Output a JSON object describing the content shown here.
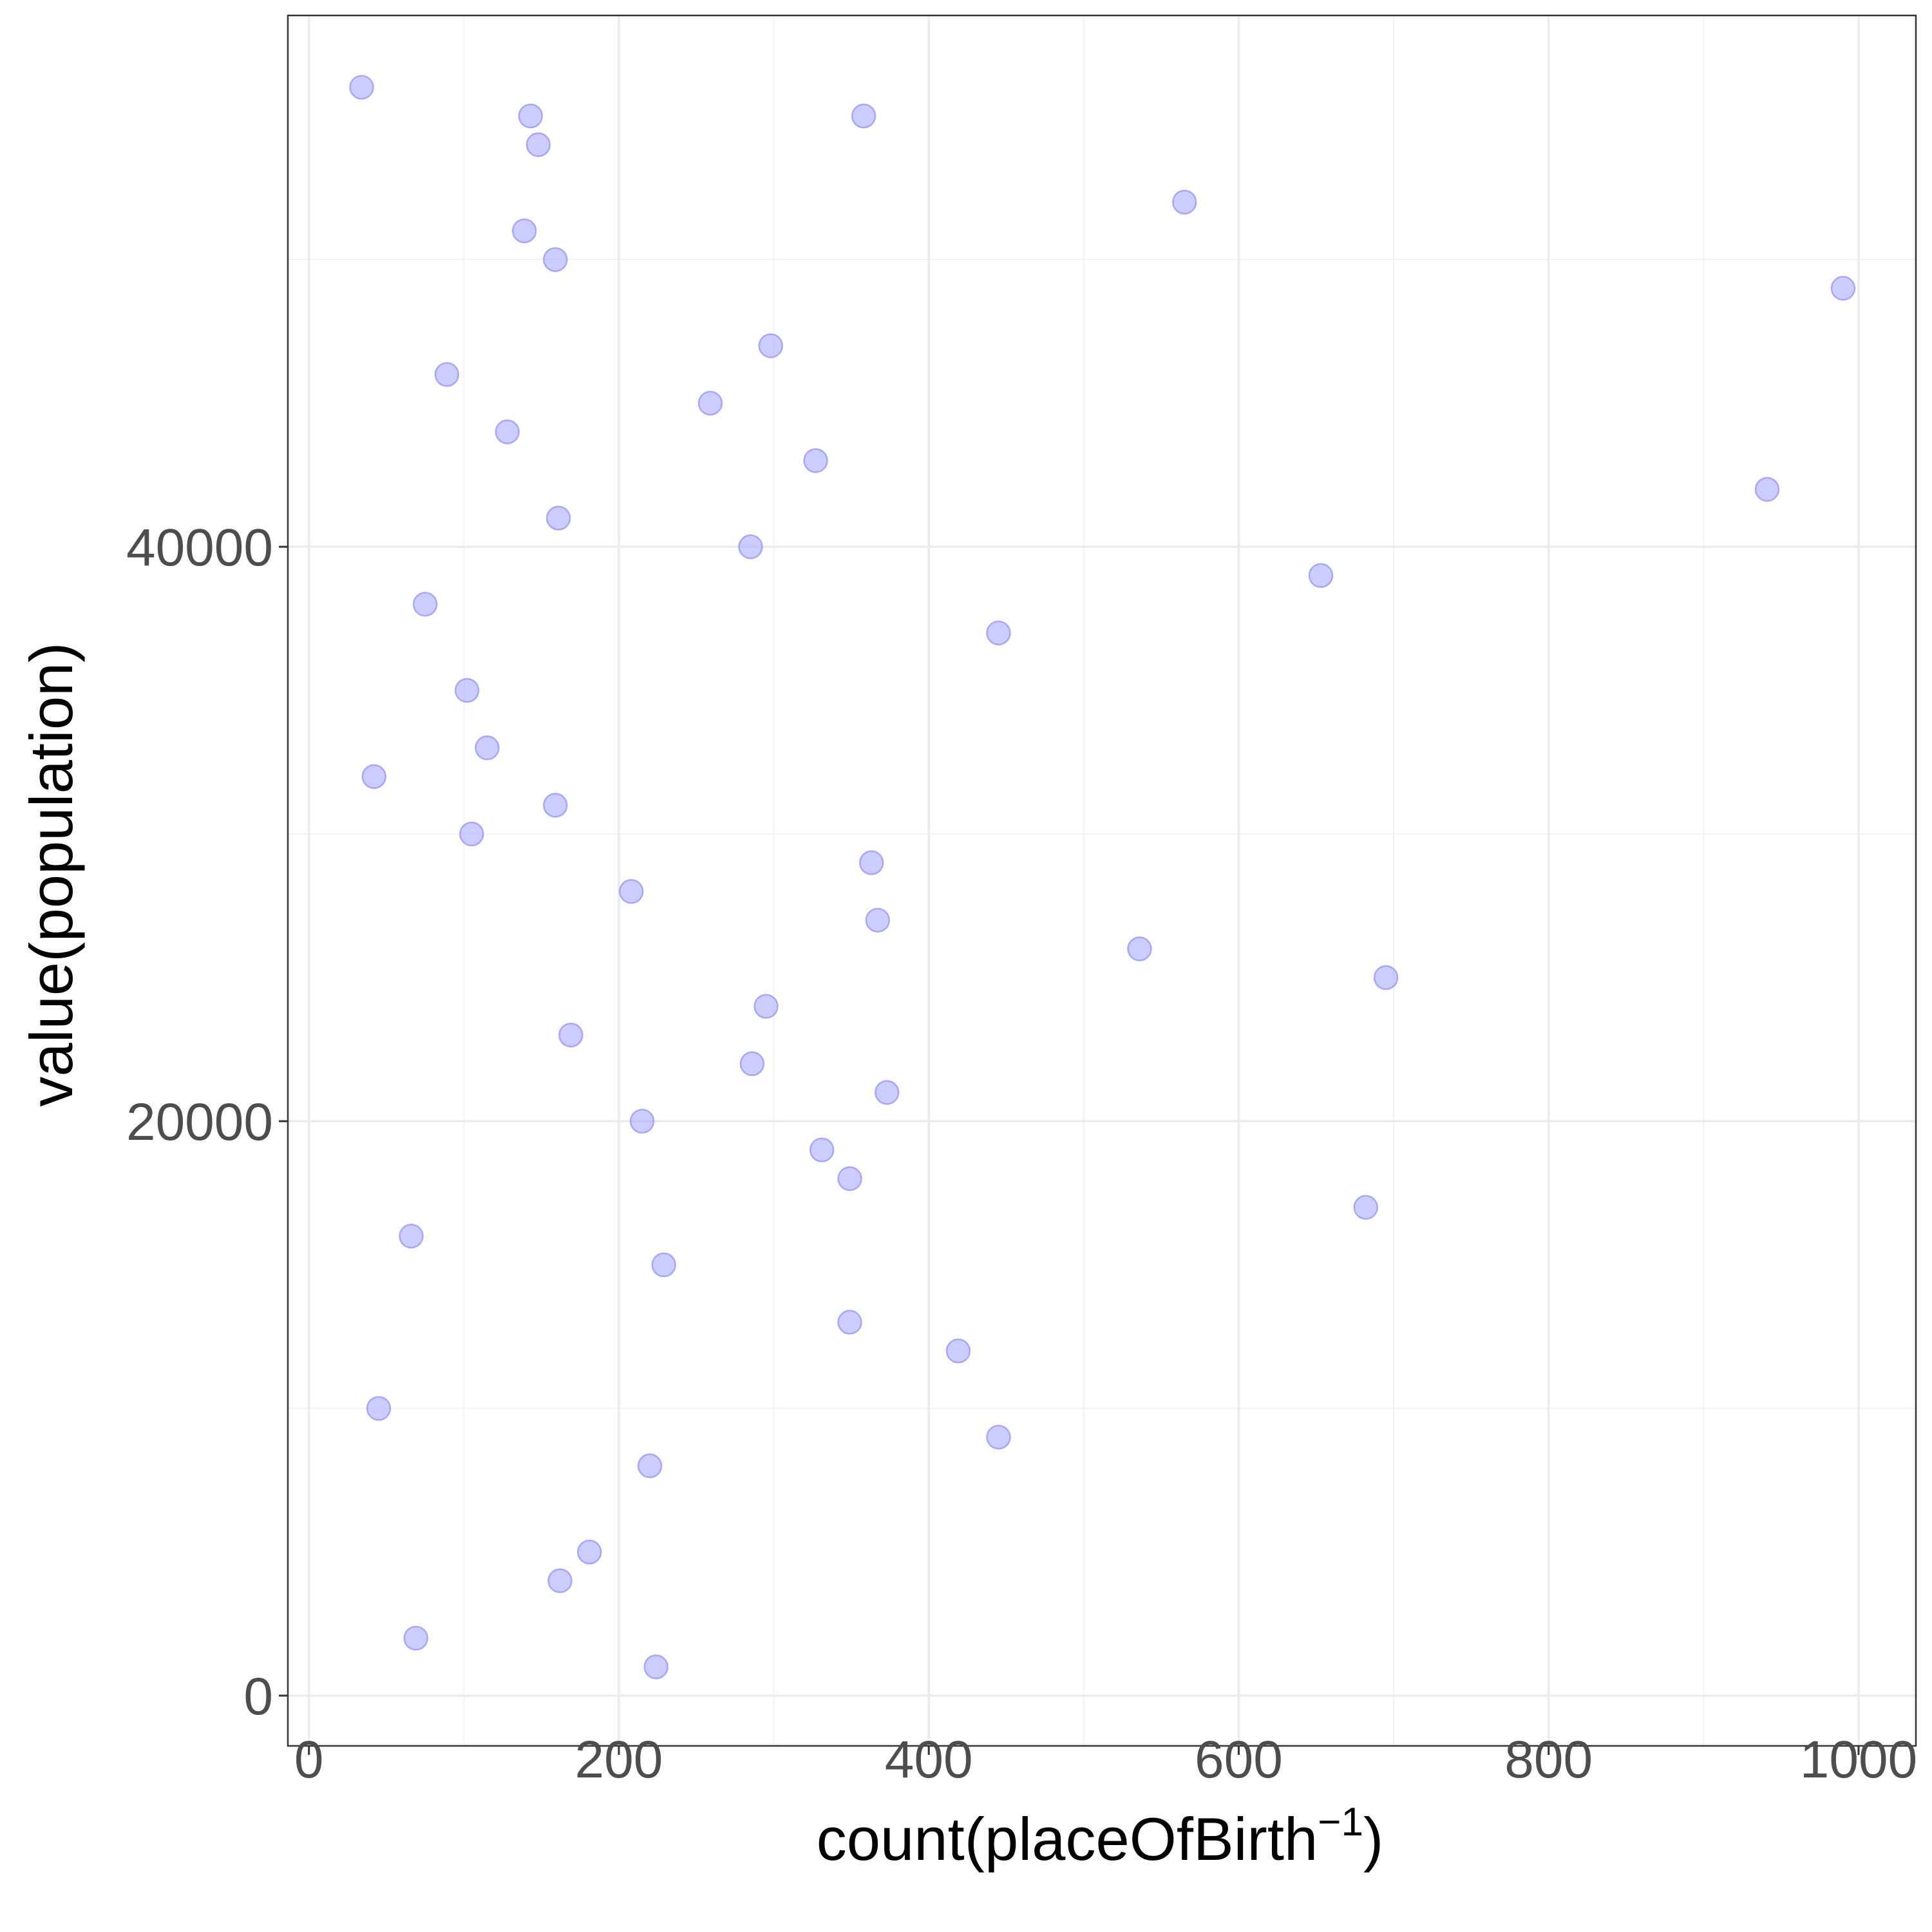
{
  "chart_data": {
    "type": "scatter",
    "xlabel": "count(placeOfBirth",
    "xlabel_superscript": "−1",
    "xlabel_suffix": ")",
    "ylabel": "value(population)",
    "xlim": [
      -13.6,
      1037
    ],
    "ylim": [
      -1750,
      58500
    ],
    "x_ticks": [
      0,
      200,
      400,
      600,
      800,
      1000
    ],
    "x_tick_labels": [
      "0",
      "200",
      "400",
      "600",
      "800",
      "1000"
    ],
    "y_ticks": [
      0,
      20000,
      40000
    ],
    "y_tick_labels": [
      "0",
      "20000",
      "40000"
    ],
    "grid": true,
    "legend": false,
    "point_color": "#aaaaff",
    "x": [
      34,
      143,
      148,
      358,
      565,
      139,
      159,
      990,
      298,
      89,
      259,
      128,
      327,
      941,
      161,
      285,
      653,
      75,
      445,
      102,
      115,
      42,
      159,
      105,
      363,
      208,
      367,
      536,
      695,
      295,
      169,
      286,
      373,
      215,
      331,
      349,
      682,
      66,
      229,
      349,
      419,
      45,
      445,
      220,
      181,
      162,
      69,
      224
    ],
    "y": [
      56000,
      55000,
      54000,
      55000,
      52000,
      51000,
      50000,
      49000,
      47000,
      46000,
      45000,
      44000,
      43000,
      42000,
      41000,
      40000,
      39000,
      38000,
      37000,
      35000,
      33000,
      32000,
      31000,
      30000,
      29000,
      28000,
      27000,
      26000,
      25000,
      24000,
      23000,
      22000,
      21000,
      20000,
      19000,
      18000,
      17000,
      16000,
      15000,
      13000,
      12000,
      10000,
      9000,
      8000,
      5000,
      4000,
      2000,
      1000
    ]
  }
}
